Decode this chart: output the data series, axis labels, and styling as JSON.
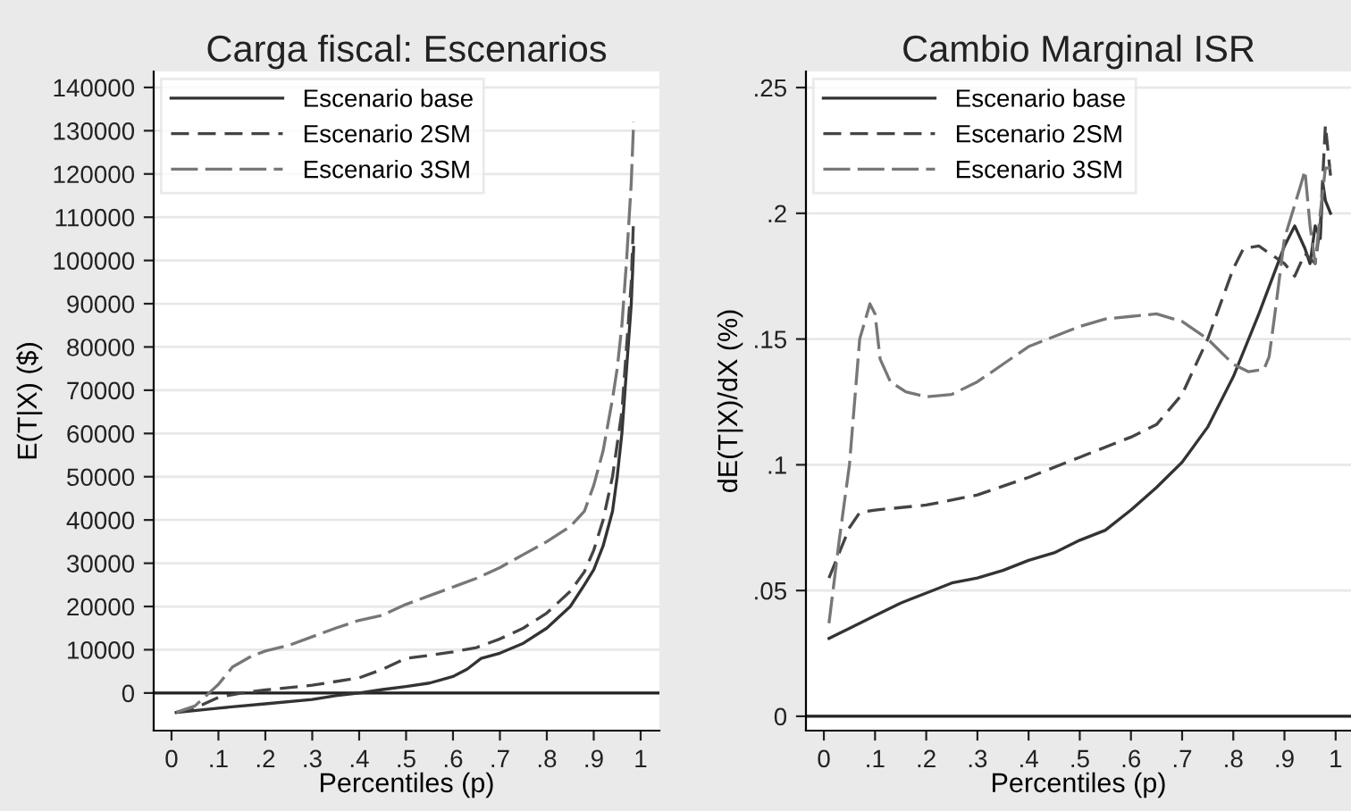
{
  "chart_data": [
    {
      "type": "line",
      "title": "Carga fiscal: Escenarios",
      "xlabel": "Percentiles (p)",
      "ylabel": "E(T|X) ($)",
      "legend": "top left",
      "grid": "y",
      "xlim": [
        -0.038,
        1.04
      ],
      "ylim": [
        -8700,
        143700
      ],
      "xticks": [
        0,
        {
          "value": 0.1,
          "label": ".1"
        },
        {
          "value": 0.2,
          "label": ".2"
        },
        {
          "value": 0.3,
          "label": ".3"
        },
        {
          "value": 0.4,
          "label": ".4"
        },
        {
          "value": 0.5,
          "label": ".5"
        },
        {
          "value": 0.6,
          "label": ".6"
        },
        {
          "value": 0.7,
          "label": ".7"
        },
        {
          "value": 0.8,
          "label": ".8"
        },
        {
          "value": 0.9,
          "label": ".9"
        },
        1
      ],
      "yticks": [
        0,
        10000,
        20000,
        30000,
        40000,
        50000,
        60000,
        70000,
        80000,
        90000,
        100000,
        110000,
        120000,
        130000,
        140000
      ],
      "ref_lines": [
        {
          "axis": "y",
          "value": 0,
          "label": null,
          "color": "#222222"
        }
      ],
      "series": [
        {
          "name": "Escenario base",
          "color": "#333333",
          "line_style": "solid",
          "x": [
            0.01,
            0.1,
            0.2,
            0.3,
            0.35,
            0.4,
            0.45,
            0.5,
            0.55,
            0.6,
            0.63,
            0.66,
            0.7,
            0.75,
            0.8,
            0.85,
            0.88,
            0.9,
            0.92,
            0.94,
            0.95,
            0.96,
            0.97,
            0.98,
            0.985
          ],
          "values": [
            -4500,
            -3500,
            -2500,
            -1500,
            -600,
            0,
            800,
            1500,
            2300,
            3800,
            5500,
            8000,
            9200,
            11500,
            15000,
            20000,
            25000,
            28500,
            34000,
            42000,
            50000,
            60000,
            75000,
            90000,
            103000
          ]
        },
        {
          "name": "Escenario 2SM",
          "color": "#444444",
          "line_style": "dashed",
          "x": [
            0.01,
            0.05,
            0.1,
            0.15,
            0.2,
            0.3,
            0.4,
            0.45,
            0.5,
            0.55,
            0.6,
            0.65,
            0.7,
            0.75,
            0.8,
            0.85,
            0.88,
            0.9,
            0.92,
            0.94,
            0.96,
            0.97,
            0.98,
            0.985
          ],
          "values": [
            -4500,
            -3500,
            -1000,
            0,
            700,
            1800,
            3500,
            5500,
            8000,
            8700,
            9500,
            10500,
            12500,
            15000,
            18500,
            23500,
            28000,
            33000,
            40000,
            50000,
            65000,
            80000,
            95000,
            110000
          ]
        },
        {
          "name": "Escenario 3SM",
          "color": "#777777",
          "line_style": "dashed",
          "x": [
            0.01,
            0.05,
            0.08,
            0.1,
            0.13,
            0.17,
            0.2,
            0.25,
            0.3,
            0.35,
            0.4,
            0.45,
            0.5,
            0.55,
            0.6,
            0.65,
            0.7,
            0.75,
            0.8,
            0.85,
            0.88,
            0.9,
            0.92,
            0.94,
            0.95,
            0.96,
            0.97,
            0.98,
            0.985
          ],
          "values": [
            -4500,
            -3000,
            0,
            2000,
            6000,
            8500,
            9700,
            11000,
            13000,
            15000,
            16800,
            18000,
            20500,
            22500,
            24500,
            26500,
            29000,
            32000,
            35000,
            38500,
            42000,
            48000,
            56000,
            68000,
            75000,
            85000,
            100000,
            118000,
            132000
          ]
        }
      ]
    },
    {
      "type": "line",
      "title": "Cambio Marginal ISR",
      "xlabel": "Percentiles (p)",
      "ylabel": "dE(T|X)/dX (%)",
      "legend": "top left",
      "grid": "y",
      "xlim": [
        -0.035,
        1.03
      ],
      "ylim": [
        -0.0057,
        0.2564
      ],
      "xticks": [
        0,
        {
          "value": 0.1,
          "label": ".1"
        },
        {
          "value": 0.2,
          "label": ".2"
        },
        {
          "value": 0.3,
          "label": ".3"
        },
        {
          "value": 0.4,
          "label": ".4"
        },
        {
          "value": 0.5,
          "label": ".5"
        },
        {
          "value": 0.6,
          "label": ".6"
        },
        {
          "value": 0.7,
          "label": ".7"
        },
        {
          "value": 0.8,
          "label": ".8"
        },
        {
          "value": 0.9,
          "label": ".9"
        },
        1
      ],
      "yticks": [
        0,
        {
          "value": 0.05,
          "label": ".05"
        },
        {
          "value": 0.1,
          "label": ".1"
        },
        {
          "value": 0.15,
          "label": ".15"
        },
        {
          "value": 0.2,
          "label": ".2"
        },
        {
          "value": 0.25,
          "label": ".25"
        }
      ],
      "ref_lines": [
        {
          "axis": "y",
          "value": 0,
          "label": null,
          "color": "#222222"
        }
      ],
      "series": [
        {
          "name": "Escenario base",
          "color": "#333333",
          "line_style": "solid",
          "x": [
            0.01,
            0.05,
            0.1,
            0.15,
            0.2,
            0.25,
            0.3,
            0.35,
            0.4,
            0.45,
            0.5,
            0.55,
            0.6,
            0.65,
            0.7,
            0.75,
            0.8,
            0.85,
            0.9,
            0.92,
            0.94,
            0.95,
            0.96,
            0.97,
            0.975,
            0.98,
            0.99
          ],
          "values": [
            0.031,
            0.035,
            0.04,
            0.045,
            0.049,
            0.053,
            0.055,
            0.058,
            0.062,
            0.065,
            0.07,
            0.074,
            0.082,
            0.091,
            0.101,
            0.115,
            0.135,
            0.16,
            0.187,
            0.195,
            0.186,
            0.18,
            0.195,
            0.19,
            0.212,
            0.205,
            0.2
          ]
        },
        {
          "name": "Escenario 2SM",
          "color": "#444444",
          "line_style": "dashed",
          "x": [
            0.01,
            0.03,
            0.05,
            0.07,
            0.1,
            0.2,
            0.3,
            0.4,
            0.5,
            0.6,
            0.65,
            0.7,
            0.75,
            0.8,
            0.82,
            0.85,
            0.9,
            0.92,
            0.94,
            0.96,
            0.97,
            0.98,
            0.99
          ],
          "values": [
            0.055,
            0.065,
            0.075,
            0.081,
            0.082,
            0.084,
            0.088,
            0.095,
            0.103,
            0.111,
            0.116,
            0.128,
            0.15,
            0.178,
            0.186,
            0.187,
            0.18,
            0.175,
            0.184,
            0.18,
            0.195,
            0.235,
            0.215
          ]
        },
        {
          "name": "Escenario 3SM",
          "color": "#777777",
          "line_style": "dashed",
          "x": [
            0.01,
            0.03,
            0.05,
            0.07,
            0.09,
            0.1,
            0.11,
            0.13,
            0.16,
            0.2,
            0.25,
            0.3,
            0.35,
            0.4,
            0.45,
            0.5,
            0.55,
            0.6,
            0.65,
            0.7,
            0.75,
            0.8,
            0.83,
            0.86,
            0.87,
            0.88,
            0.9,
            0.93,
            0.94,
            0.95,
            0.96,
            0.97,
            0.98,
            0.99
          ],
          "values": [
            0.037,
            0.07,
            0.1,
            0.15,
            0.164,
            0.16,
            0.142,
            0.133,
            0.129,
            0.127,
            0.128,
            0.133,
            0.14,
            0.147,
            0.151,
            0.155,
            0.158,
            0.159,
            0.16,
            0.157,
            0.15,
            0.14,
            0.137,
            0.138,
            0.143,
            0.158,
            0.19,
            0.21,
            0.217,
            0.195,
            0.18,
            0.2,
            0.218,
            0.218
          ]
        }
      ]
    }
  ]
}
